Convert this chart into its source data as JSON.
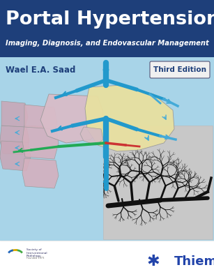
{
  "title": "Portal Hypertension",
  "subtitle": "Imaging, Diagnosis, and Endovascular Management",
  "author": "Wael E.A. Saad",
  "edition": "Third Edition",
  "publisher": "Thieme",
  "bg_color": "#ffffff",
  "header_bg": "#1e3f7a",
  "title_color": "#ffffff",
  "subtitle_color": "#ffffff",
  "author_color": "#1e3f7a",
  "edition_bg": "#f0f0f0",
  "edition_color": "#1e3f7a",
  "body_bg": "#a8d4e8",
  "fig_width": 3.07,
  "fig_height": 4.0,
  "dpi": 100
}
